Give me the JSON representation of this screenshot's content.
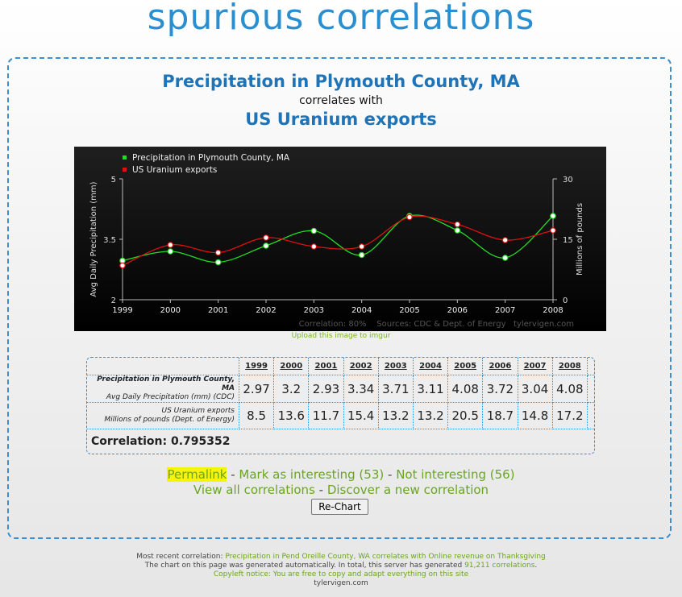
{
  "site": {
    "logo": "spurious correlations"
  },
  "header": {
    "title_a": "Precipitation in Plymouth County, MA",
    "connector": "correlates with",
    "title_b": "US Uranium exports"
  },
  "chart_data": {
    "type": "line",
    "x": [
      1999,
      2000,
      2001,
      2002,
      2003,
      2004,
      2005,
      2006,
      2007,
      2008
    ],
    "series": [
      {
        "name": "Precipitation in Plymouth County, MA",
        "axis": "left",
        "color": "#22dd22",
        "values": [
          2.97,
          3.2,
          2.93,
          3.34,
          3.71,
          3.11,
          4.08,
          3.72,
          3.04,
          4.08
        ]
      },
      {
        "name": "US Uranium exports",
        "axis": "right",
        "color": "#dd1111",
        "values": [
          8.5,
          13.6,
          11.7,
          15.4,
          13.2,
          13.2,
          20.5,
          18.7,
          14.8,
          17.2
        ]
      }
    ],
    "ylabel_left": "Avg Daily Precipitation (mm)",
    "ylabel_right": "Millions of pounds",
    "ylim_left": [
      2,
      5
    ],
    "ylim_right": [
      0,
      30
    ],
    "yticks_left": [
      "5",
      "3.5",
      "2"
    ],
    "yticks_right": [
      "30",
      "15",
      "0"
    ],
    "legend_position": "top-left",
    "credit": "Correlation: 80%    Sources: CDC & Dept. of Energy   tylervigen.com"
  },
  "upload_link": "Upload this image to imgur",
  "table": {
    "years": [
      "1999",
      "2000",
      "2001",
      "2002",
      "2003",
      "2004",
      "2005",
      "2006",
      "2007",
      "2008"
    ],
    "row1": {
      "label": "Precipitation in Plymouth County, MA",
      "sublabel": "Avg Daily Precipitation (mm) (CDC)",
      "values": [
        "2.97",
        "3.2",
        "2.93",
        "3.34",
        "3.71",
        "3.11",
        "4.08",
        "3.72",
        "3.04",
        "4.08"
      ]
    },
    "row2": {
      "label": "US Uranium exports",
      "sublabel": "Millions of pounds (Dept. of Energy)",
      "values": [
        "8.5",
        "13.6",
        "11.7",
        "15.4",
        "13.2",
        "13.2",
        "20.5",
        "18.7",
        "14.8",
        "17.2"
      ]
    },
    "correlation": "Correlation: 0.795352"
  },
  "links": {
    "permalink": "Permalink",
    "mark_interesting": "Mark as interesting (53)",
    "not_interesting": "Not interesting (56)",
    "view_all": "View all correlations",
    "discover": "Discover a new correlation",
    "separator": " - "
  },
  "rechart_label": "Re-Chart",
  "footer": {
    "recent_prefix": "Most recent correlation: ",
    "recent_link": "Precipitation in Pend Oreille County, WA correlates with Online revenue on Thanksgiving",
    "generated_prefix": "The chart on this page was generated automatically. In total, this server has generated ",
    "generated_count": "91,211 correlations",
    "generated_suffix": ".",
    "copyleft": "Copyleft notice: You are free to copy and adapt everything on this site",
    "site": "tylervigen.com"
  }
}
